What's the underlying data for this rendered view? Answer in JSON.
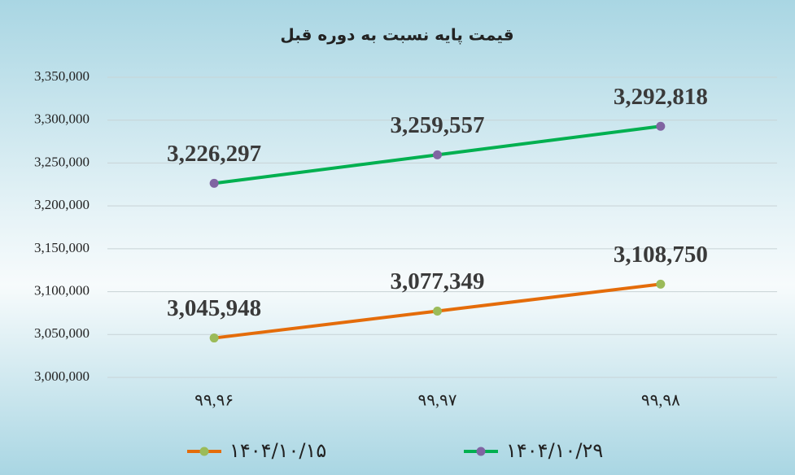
{
  "chart_data": {
    "type": "line",
    "title": "قیمت پایه نسبت به دوره قبل",
    "categories": [
      "۹۹,۹۶",
      "۹۹,۹۷",
      "۹۹,۹۸"
    ],
    "series": [
      {
        "name": "۱۴۰۴/۱۰/۱۵",
        "color": "#e46c0a",
        "marker_color": "#9bbb59",
        "values": [
          3045948,
          3077349,
          3108750
        ],
        "value_labels": [
          "3,045,948",
          "3,077,349",
          "3,108,750"
        ]
      },
      {
        "name": "۱۴۰۴/۱۰/۲۹",
        "color": "#00b050",
        "marker_color": "#8064a2",
        "values": [
          3226297,
          3259557,
          3292818
        ],
        "value_labels": [
          "3,226,297",
          "3,259,557",
          "3,292,818"
        ]
      }
    ],
    "ylim": [
      3000000,
      3350000
    ],
    "yticks": [
      {
        "value": 3000000,
        "label": "3,000,000"
      },
      {
        "value": 3050000,
        "label": "3,050,000"
      },
      {
        "value": 3100000,
        "label": "3,100,000"
      },
      {
        "value": 3150000,
        "label": "3,150,000"
      },
      {
        "value": 3200000,
        "label": "3,200,000"
      },
      {
        "value": 3250000,
        "label": "3,250,000"
      },
      {
        "value": 3300000,
        "label": "3,300,000"
      },
      {
        "value": 3350000,
        "label": "3,350,000"
      }
    ],
    "grid": true
  }
}
